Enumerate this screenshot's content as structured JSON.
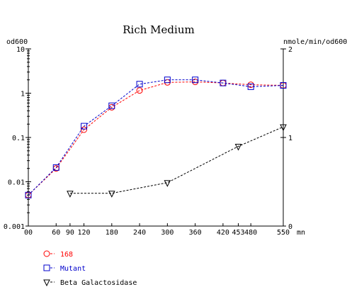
{
  "chart_data": {
    "type": "line",
    "title": "Rich Medium",
    "xlabel": "mn",
    "ylabel_left": "od600",
    "ylabel_right": "nmole/min/od600",
    "x_ticks": [
      "00",
      "60",
      "90",
      "120",
      "180",
      "240",
      "300",
      "360",
      "420",
      "453",
      "480",
      "550"
    ],
    "x_tick_values": [
      0,
      60,
      90,
      120,
      180,
      240,
      300,
      360,
      420,
      453,
      480,
      550
    ],
    "xlim": [
      0,
      550
    ],
    "y_left_scale": "log",
    "y_left_ticks": [
      "10",
      "1",
      "0.1",
      "0.01",
      "0.001"
    ],
    "y_left_tick_values": [
      10,
      1,
      0.1,
      0.01,
      0.001
    ],
    "y_left_lim": [
      0.001,
      10
    ],
    "y_right_ticks": [
      "2",
      "1",
      "0"
    ],
    "y_right_tick_values": [
      2,
      1,
      0
    ],
    "y_right_lim": [
      0,
      2
    ],
    "grid": false,
    "legend_position": "bottom-left",
    "series": [
      {
        "name": "168",
        "axis": "left",
        "marker": "circle",
        "color": "#ff0000",
        "x": [
          0,
          60,
          120,
          180,
          240,
          300,
          360,
          420,
          480,
          550
        ],
        "y": [
          0.005,
          0.02,
          0.15,
          0.48,
          1.15,
          1.75,
          1.8,
          1.7,
          1.55,
          1.5
        ]
      },
      {
        "name": "Mutant",
        "axis": "left",
        "marker": "square",
        "color": "#0000cc",
        "x": [
          0,
          60,
          120,
          180,
          240,
          300,
          360,
          420,
          480,
          550
        ],
        "y": [
          0.005,
          0.021,
          0.18,
          0.52,
          1.6,
          2.0,
          2.0,
          1.7,
          1.4,
          1.5
        ]
      },
      {
        "name": "Beta Galactosidase",
        "axis": "right",
        "marker": "triangle-down",
        "color": "#000000",
        "x": [
          90,
          180,
          300,
          453,
          550
        ],
        "y": [
          0.37,
          0.37,
          0.49,
          0.9,
          1.12
        ]
      }
    ]
  }
}
